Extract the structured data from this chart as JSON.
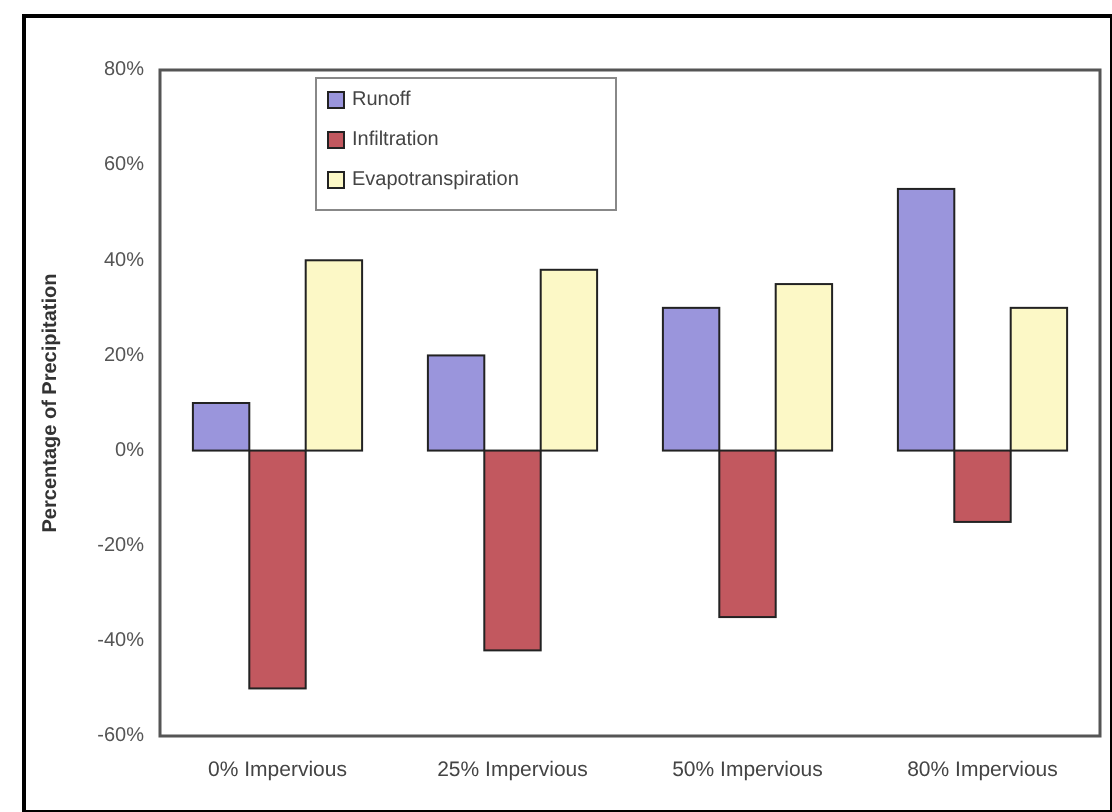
{
  "chart_data": {
    "type": "bar",
    "ylabel": "Percentage of Precipitation",
    "categories": [
      "0% Impervious",
      "25% Impervious",
      "50% Impervious",
      "80% Impervious"
    ],
    "series": [
      {
        "name": "Runoff",
        "color": "#9a95dc",
        "values": [
          10,
          20,
          30,
          55
        ]
      },
      {
        "name": "Infiltration",
        "color": "#c2585f",
        "values": [
          -50,
          -42,
          -35,
          -15
        ]
      },
      {
        "name": "Evapotranspiration",
        "color": "#fcf8c6",
        "values": [
          40,
          38,
          35,
          30
        ]
      }
    ],
    "ylim": [
      -60,
      80
    ],
    "yticks": [
      {
        "value": -60,
        "label": "-60%"
      },
      {
        "value": -40,
        "label": "-40%"
      },
      {
        "value": -20,
        "label": "-20%"
      },
      {
        "value": 0,
        "label": "0%"
      },
      {
        "value": 20,
        "label": "20%"
      },
      {
        "value": 40,
        "label": "40%"
      },
      {
        "value": 60,
        "label": "60%"
      },
      {
        "value": 80,
        "label": "80%"
      }
    ],
    "legend": "top left"
  }
}
